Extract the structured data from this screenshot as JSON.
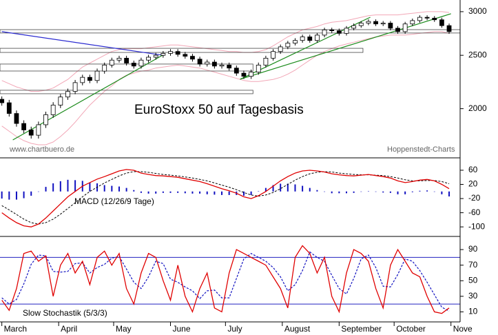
{
  "chart_data": [
    {
      "type": "candlestick",
      "title": "EuroStoxx 50 auf Tagesbasis",
      "source_left": "www.chartbuero.de",
      "source_right": "Hoppenstedt-Charts",
      "log_scale": true,
      "ylim": [
        1633,
        3150
      ],
      "yticks": [
        3000,
        2500,
        2000
      ],
      "xlim": [
        -1,
        250
      ],
      "xticks": [
        {
          "value": 0,
          "label": "March"
        },
        {
          "value": 31,
          "label": "April"
        },
        {
          "value": 61,
          "label": "May"
        },
        {
          "value": 92,
          "label": "June"
        },
        {
          "value": 122,
          "label": "July"
        },
        {
          "value": 153,
          "label": "August"
        },
        {
          "value": 184,
          "label": "September"
        },
        {
          "value": 214,
          "label": "October"
        },
        {
          "value": 245,
          "label": "Nove"
        }
      ],
      "x": [
        0,
        4,
        8,
        12,
        16,
        20,
        24,
        28,
        32,
        36,
        40,
        44,
        48,
        52,
        56,
        60,
        64,
        68,
        72,
        76,
        80,
        84,
        88,
        92,
        96,
        100,
        104,
        108,
        112,
        116,
        120,
        124,
        128,
        132,
        136,
        140,
        144,
        148,
        152,
        156,
        160,
        164,
        168,
        172,
        176,
        180,
        184,
        188,
        192,
        196,
        200,
        204,
        208,
        212,
        216,
        220,
        224,
        228,
        232,
        236,
        240,
        244
      ],
      "open": [
        2080,
        2050,
        1960,
        1880,
        1830,
        1790,
        1870,
        1950,
        2030,
        2100,
        2150,
        2230,
        2280,
        2250,
        2340,
        2400,
        2450,
        2470,
        2420,
        2390,
        2450,
        2480,
        2500,
        2520,
        2540,
        2510,
        2490,
        2460,
        2410,
        2430,
        2390,
        2400,
        2370,
        2320,
        2290,
        2330,
        2400,
        2470,
        2540,
        2590,
        2630,
        2660,
        2700,
        2660,
        2720,
        2780,
        2770,
        2740,
        2800,
        2830,
        2860,
        2880,
        2850,
        2860,
        2800,
        2760,
        2850,
        2890,
        2930,
        2920,
        2900,
        2830
      ],
      "high": [
        2105,
        2075,
        1985,
        1905,
        1855,
        1895,
        1975,
        2055,
        2125,
        2175,
        2255,
        2305,
        2305,
        2365,
        2425,
        2475,
        2495,
        2495,
        2445,
        2475,
        2505,
        2525,
        2545,
        2565,
        2565,
        2535,
        2515,
        2485,
        2455,
        2455,
        2425,
        2425,
        2395,
        2345,
        2355,
        2425,
        2495,
        2565,
        2615,
        2655,
        2685,
        2725,
        2725,
        2745,
        2805,
        2805,
        2795,
        2825,
        2855,
        2885,
        2905,
        2905,
        2885,
        2885,
        2825,
        2875,
        2915,
        2955,
        2955,
        2945,
        2925,
        2855
      ],
      "low": [
        2025,
        1935,
        1855,
        1805,
        1765,
        1765,
        1845,
        1925,
        2005,
        2075,
        2125,
        2205,
        2225,
        2225,
        2315,
        2375,
        2425,
        2395,
        2365,
        2365,
        2425,
        2455,
        2475,
        2495,
        2485,
        2465,
        2435,
        2385,
        2385,
        2365,
        2365,
        2345,
        2295,
        2265,
        2265,
        2305,
        2375,
        2445,
        2515,
        2565,
        2605,
        2635,
        2635,
        2635,
        2695,
        2745,
        2715,
        2715,
        2775,
        2805,
        2835,
        2825,
        2825,
        2775,
        2735,
        2735,
        2825,
        2865,
        2895,
        2875,
        2805,
        2735
      ],
      "close": [
        2050,
        1960,
        1880,
        1830,
        1790,
        1870,
        1950,
        2030,
        2100,
        2150,
        2230,
        2280,
        2250,
        2340,
        2400,
        2450,
        2470,
        2420,
        2390,
        2450,
        2480,
        2500,
        2520,
        2540,
        2510,
        2490,
        2460,
        2410,
        2430,
        2390,
        2400,
        2370,
        2320,
        2290,
        2330,
        2400,
        2470,
        2540,
        2590,
        2630,
        2660,
        2700,
        2660,
        2720,
        2780,
        2770,
        2740,
        2800,
        2830,
        2860,
        2880,
        2850,
        2860,
        2800,
        2760,
        2850,
        2890,
        2930,
        2920,
        2900,
        2830,
        2760
      ],
      "upper_band": [
        2250,
        2220,
        2190,
        2170,
        2150,
        2150,
        2160,
        2180,
        2220,
        2260,
        2320,
        2380,
        2420,
        2460,
        2500,
        2540,
        2560,
        2570,
        2570,
        2570,
        2580,
        2590,
        2600,
        2610,
        2610,
        2600,
        2590,
        2580,
        2570,
        2560,
        2550,
        2540,
        2540,
        2530,
        2530,
        2540,
        2560,
        2600,
        2650,
        2700,
        2740,
        2780,
        2800,
        2820,
        2850,
        2870,
        2880,
        2890,
        2910,
        2930,
        2950,
        2960,
        2960,
        2960,
        2960,
        2970,
        2980,
        2990,
        3000,
        3000,
        3000,
        2990
      ],
      "lower_band": [
        1860,
        1820,
        1780,
        1750,
        1730,
        1720,
        1720,
        1740,
        1780,
        1830,
        1890,
        1960,
        2030,
        2090,
        2150,
        2200,
        2260,
        2300,
        2320,
        2340,
        2350,
        2370,
        2380,
        2390,
        2400,
        2390,
        2380,
        2370,
        2350,
        2330,
        2310,
        2290,
        2270,
        2250,
        2240,
        2240,
        2250,
        2260,
        2280,
        2310,
        2350,
        2400,
        2450,
        2500,
        2540,
        2570,
        2600,
        2620,
        2640,
        2660,
        2680,
        2700,
        2710,
        2720,
        2720,
        2720,
        2730,
        2740,
        2750,
        2760,
        2760,
        2740
      ],
      "candle_color": "#000000",
      "band_color": "#f2a6b6",
      "zones": [
        {
          "low": 2744,
          "high": 2783,
          "x_end": 250
        },
        {
          "low": 2530,
          "high": 2574,
          "x_end": 197
        },
        {
          "low": 2341,
          "high": 2410,
          "x_end": 137
        },
        {
          "low": 2129,
          "high": 2160,
          "x_end": 137
        }
      ],
      "trendlines": [
        {
          "color": "#2a2ad0",
          "points": [
            [
              0,
              2760
            ],
            [
              88,
              2500
            ]
          ]
        },
        {
          "color": "#1a8a1a",
          "points": [
            [
              6,
              1755
            ],
            [
              89,
              2515
            ]
          ]
        },
        {
          "color": "#1a8a1a",
          "points": [
            [
              130,
              2262
            ],
            [
              201,
              2931
            ]
          ]
        },
        {
          "color": "#1a8a1a",
          "points": [
            [
              130,
              2262
            ],
            [
              245,
              2974
            ]
          ]
        }
      ]
    },
    {
      "type": "macd",
      "label": "MACD (12/26/9 Tage)",
      "ylim": [
        -125,
        93
      ],
      "yticks": [
        60,
        20,
        -20,
        -60,
        -100
      ],
      "macd": [
        -60,
        -75,
        -88,
        -97,
        -100,
        -92,
        -75,
        -55,
        -35,
        -15,
        0,
        15,
        25,
        35,
        42,
        50,
        58,
        62,
        60,
        52,
        48,
        45,
        44,
        42,
        40,
        36,
        32,
        28,
        22,
        15,
        8,
        2,
        -5,
        -15,
        -20,
        -12,
        0,
        15,
        30,
        42,
        52,
        58,
        60,
        58,
        55,
        50,
        47,
        45,
        44,
        46,
        48,
        45,
        42,
        38,
        30,
        25,
        28,
        32,
        34,
        30,
        20,
        8
      ],
      "signal": [
        -40,
        -52,
        -65,
        -78,
        -88,
        -92,
        -88,
        -78,
        -64,
        -48,
        -32,
        -15,
        0,
        12,
        24,
        34,
        44,
        52,
        56,
        56,
        54,
        51,
        48,
        46,
        44,
        41,
        38,
        34,
        30,
        24,
        18,
        12,
        5,
        -3,
        -10,
        -13,
        -10,
        -3,
        8,
        20,
        32,
        42,
        50,
        54,
        56,
        55,
        52,
        50,
        48,
        47,
        47,
        46,
        45,
        42,
        38,
        33,
        30,
        30,
        31,
        31,
        28,
        22
      ],
      "histogram": [
        -20,
        -23,
        -23,
        -19,
        -12,
        0,
        13,
        23,
        29,
        33,
        32,
        30,
        25,
        23,
        18,
        16,
        14,
        10,
        4,
        -4,
        -6,
        -6,
        -4,
        -4,
        -4,
        -5,
        -6,
        -6,
        -8,
        -9,
        -10,
        -10,
        -10,
        -12,
        -10,
        1,
        10,
        18,
        22,
        22,
        20,
        16,
        10,
        4,
        -1,
        -5,
        -5,
        -5,
        -4,
        -1,
        1,
        -1,
        -3,
        -4,
        -8,
        -8,
        -2,
        2,
        3,
        -1,
        -8,
        -14
      ],
      "macd_color": "#e00000",
      "signal_color": "#000000",
      "histogram_color": "#1010c0"
    },
    {
      "type": "stochastic",
      "label": "Slow Stochastik (5/3/3)",
      "ylim": [
        -2,
        106
      ],
      "yticks": [
        90,
        70,
        50,
        30,
        10
      ],
      "levels": [
        80,
        20
      ],
      "level_color": "#2020c0",
      "k": [
        25,
        12,
        40,
        85,
        88,
        75,
        82,
        30,
        70,
        85,
        60,
        75,
        45,
        80,
        88,
        70,
        85,
        40,
        20,
        60,
        85,
        80,
        50,
        25,
        70,
        30,
        10,
        40,
        60,
        15,
        10,
        60,
        90,
        85,
        80,
        75,
        70,
        55,
        40,
        15,
        80,
        95,
        85,
        60,
        80,
        30,
        10,
        60,
        90,
        85,
        75,
        40,
        15,
        70,
        90,
        75,
        60,
        55,
        30,
        10,
        8,
        15
      ],
      "d": [
        28,
        20,
        26,
        46,
        71,
        83,
        82,
        62,
        61,
        62,
        72,
        73,
        60,
        67,
        71,
        79,
        81,
        65,
        48,
        40,
        55,
        75,
        72,
        52,
        48,
        42,
        37,
        27,
        37,
        38,
        28,
        28,
        53,
        78,
        85,
        80,
        75,
        67,
        55,
        37,
        45,
        63,
        87,
        80,
        75,
        57,
        40,
        33,
        53,
        78,
        83,
        67,
        43,
        42,
        58,
        78,
        75,
        63,
        48,
        32,
        16,
        11
      ],
      "k_color": "#e00000",
      "d_color": "#1010c0"
    }
  ]
}
